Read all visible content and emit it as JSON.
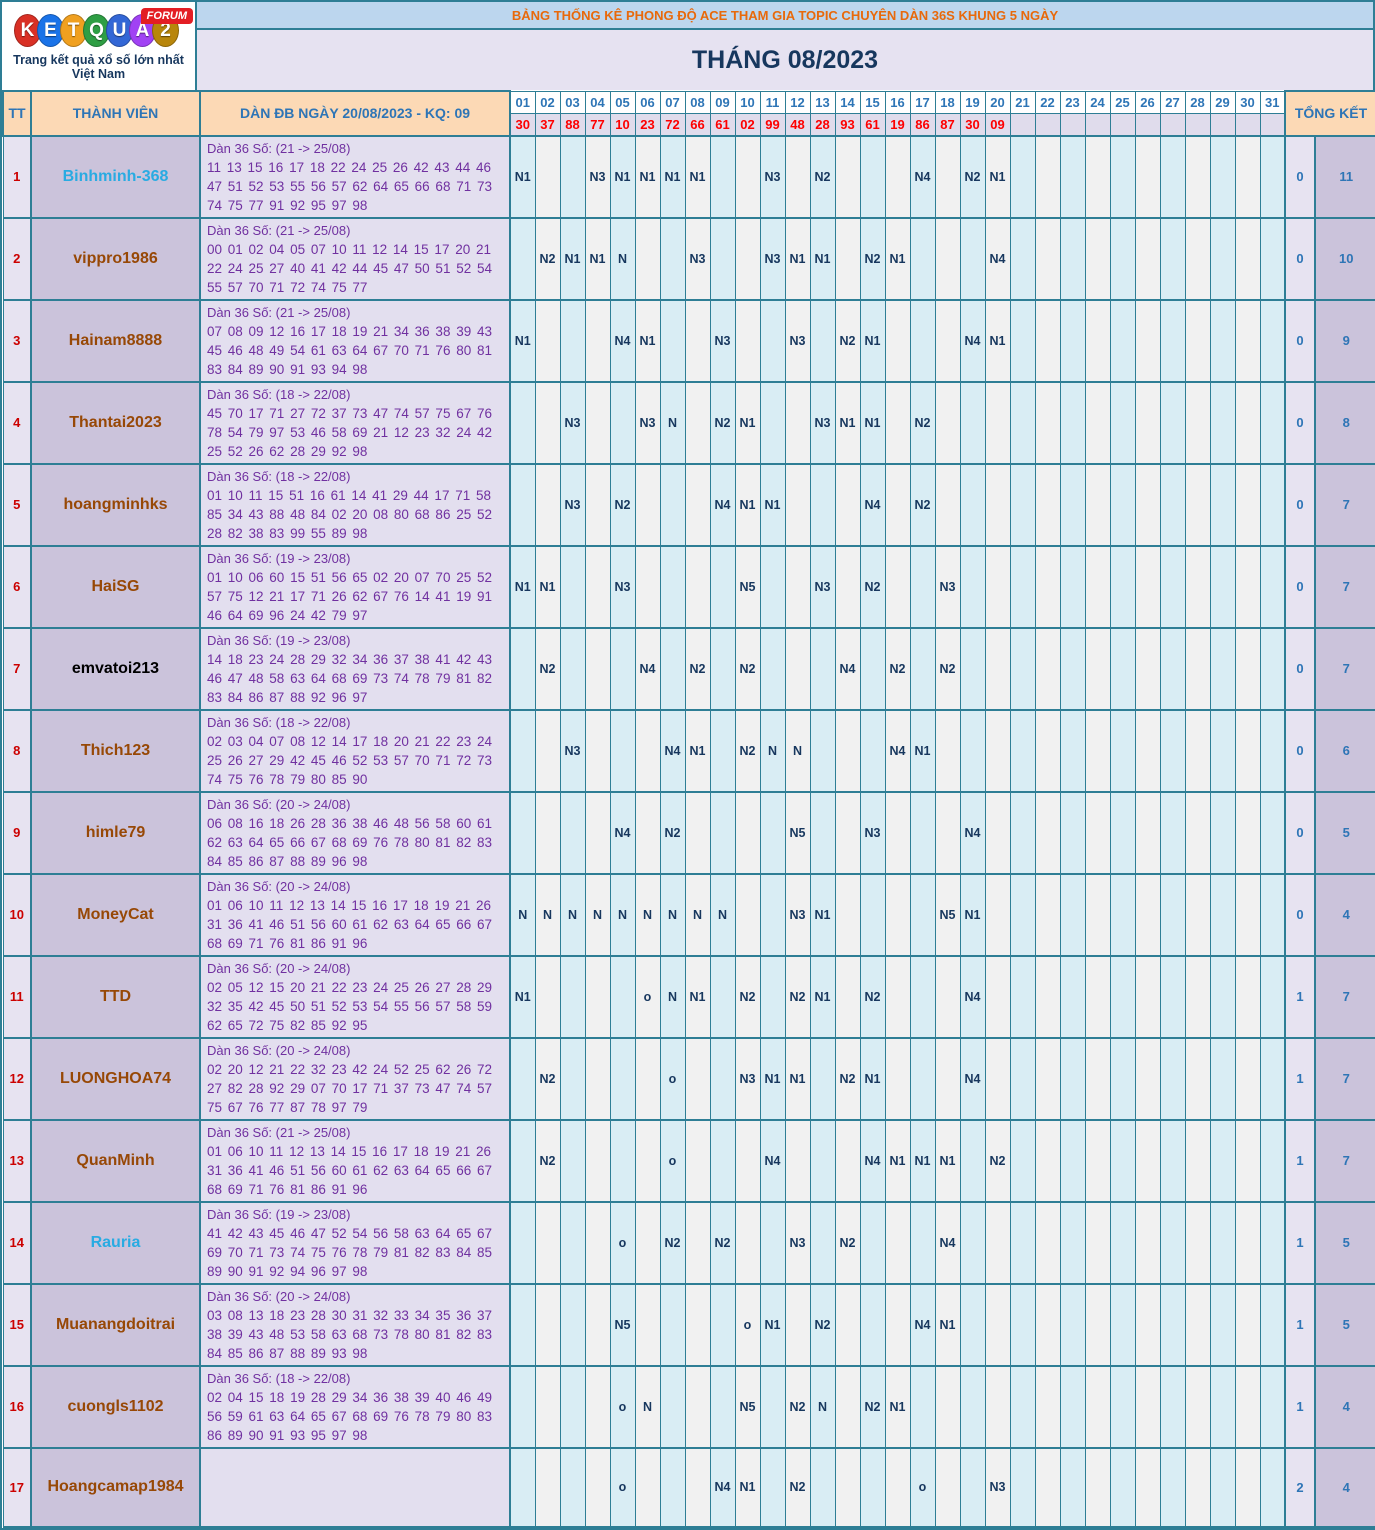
{
  "logo": {
    "brand_letters": [
      "K",
      "E",
      "T",
      "Q",
      "U",
      "A",
      "2"
    ],
    "forum_badge": "FORUM",
    "tagline": "Trang kết quả xổ số lớn nhất Việt Nam"
  },
  "header": {
    "title": "BẢNG THỐNG KÊ PHONG ĐỘ ACE THAM GIA TOPIC CHUYÊN DÀN 36S KHUNG 5 NGÀY",
    "month_title": "THÁNG 08/2023"
  },
  "colors": {
    "border_teal": "#2E7E95",
    "title_orange": "#E8690B",
    "navy": "#17375E",
    "header_peach": "#FCD9B5",
    "day_blue": "#2E75B6",
    "result_red": "#FE0000",
    "dan_purple": "#7030A0",
    "grid_blue": "#D9EDF4",
    "grid_gray": "#F1F1F1",
    "name_blue": "#29ABE2",
    "name_brown": "#974806",
    "ball_colors": [
      "#D93025",
      "#1A73E8",
      "#F0A020",
      "#2E9E44",
      "#3367D6",
      "#A142F4",
      "#B8860B"
    ]
  },
  "table": {
    "col_tt": "TT",
    "col_member": "THÀNH VIÊN",
    "col_dan": "DÀN ĐB NGÀY 20/08/2023 - KQ: 09",
    "col_total": "TỔNG KẾT",
    "days": [
      "01",
      "02",
      "03",
      "04",
      "05",
      "06",
      "07",
      "08",
      "09",
      "10",
      "11",
      "12",
      "13",
      "14",
      "15",
      "16",
      "17",
      "18",
      "19",
      "20",
      "21",
      "22",
      "23",
      "24",
      "25",
      "26",
      "27",
      "28",
      "29",
      "30",
      "31"
    ],
    "results": [
      "30",
      "37",
      "88",
      "77",
      "10",
      "23",
      "72",
      "66",
      "61",
      "02",
      "99",
      "48",
      "28",
      "93",
      "61",
      "19",
      "86",
      "87",
      "30",
      "09"
    ],
    "rows": [
      {
        "tt": "1",
        "name": "Binhminh-368",
        "name_color": "blue",
        "dan_title": "Dàn 36 Số: (21 -> 25/08)",
        "dan_numbers": "11 13 15 16 17 18 22 24 25 26 42 43 44 46 47 51 52 53 55 56 57 62 64 65 66 68 71 73 74 75 77 91 92 95 97 98",
        "marks": {
          "1": "N1",
          "4": "N3",
          "5": "N1",
          "6": "N1",
          "7": "N1",
          "8": "N1",
          "11": "N3",
          "13": "N2",
          "17": "N4",
          "19": "N2",
          "20": "N1"
        },
        "total": [
          "0",
          "11"
        ]
      },
      {
        "tt": "2",
        "name": "vippro1986",
        "name_color": "brown",
        "dan_title": "Dàn 36 Số: (21 -> 25/08)",
        "dan_numbers": "00 01 02 04 05 07 10 11 12 14 15 17 20 21 22 24 25 27 40 41 42 44 45 47 50 51 52 54 55 57 70 71 72 74 75 77",
        "marks": {
          "2": "N2",
          "3": "N1",
          "4": "N1",
          "5": "N",
          "8": "N3",
          "11": "N3",
          "12": "N1",
          "13": "N1",
          "15": "N2",
          "16": "N1",
          "20": "N4"
        },
        "total": [
          "0",
          "10"
        ]
      },
      {
        "tt": "3",
        "name": "Hainam8888",
        "name_color": "brown",
        "dan_title": "Dàn 36 Số: (21 -> 25/08)",
        "dan_numbers": "07 08 09 12 16 17 18 19 21 34 36 38 39 43 45 46 48 49 54 61 63 64 67 70 71 76 80 81 83 84 89 90 91 93 94 98",
        "marks": {
          "1": "N1",
          "5": "N4",
          "6": "N1",
          "9": "N3",
          "12": "N3",
          "14": "N2",
          "15": "N1",
          "19": "N4",
          "20": "N1"
        },
        "total": [
          "0",
          "9"
        ]
      },
      {
        "tt": "4",
        "name": "Thantai2023",
        "name_color": "brown",
        "dan_title": "Dàn 36 Số: (18 -> 22/08)",
        "dan_numbers": "45 70 17 71 27 72 37 73 47 74 57 75 67 76 78 54 79 97 53 46 58 69 21 12 23 32 24 42 25 52 26 62 28 29 92 98",
        "marks": {
          "3": "N3",
          "6": "N3",
          "7": "N",
          "9": "N2",
          "10": "N1",
          "13": "N3",
          "14": "N1",
          "15": "N1",
          "17": "N2"
        },
        "total": [
          "0",
          "8"
        ]
      },
      {
        "tt": "5",
        "name": "hoangminhks",
        "name_color": "brown",
        "dan_title": "Dàn 36 Số: (18 -> 22/08)",
        "dan_numbers": "01 10 11 15 51 16 61 14 41 29 44 17 71 58 85 34 43 88 48 84 02 20 08 80 68 86 25 52 28 82 38 83 99 55 89 98",
        "marks": {
          "3": "N3",
          "5": "N2",
          "9": "N4",
          "10": "N1",
          "11": "N1",
          "15": "N4",
          "17": "N2"
        },
        "total": [
          "0",
          "7"
        ]
      },
      {
        "tt": "6",
        "name": "HaiSG",
        "name_color": "brown",
        "dan_title": "Dàn 36 Số: (19 -> 23/08)",
        "dan_numbers": "01 10 06 60 15 51 56 65 02 20 07 70 25 52 57 75 12 21 17 71 26 62 67 76 14 41 19 91 46 64 69 96 24 42 79 97",
        "marks": {
          "1": "N1",
          "2": "N1",
          "5": "N3",
          "10": "N5",
          "13": "N3",
          "15": "N2",
          "18": "N3"
        },
        "total": [
          "0",
          "7"
        ]
      },
      {
        "tt": "7",
        "name": "emvatoi213",
        "name_color": "black",
        "dan_title": "Dàn 36 Số: (19 -> 23/08)",
        "dan_numbers": "14 18 23 24 28 29 32 34 36 37 38 41 42 43 46 47 48 58 63 64 68 69 73 74 78 79 81 82 83 84 86 87 88 92 96 97",
        "marks": {
          "2": "N2",
          "6": "N4",
          "8": "N2",
          "10": "N2",
          "14": "N4",
          "16": "N2",
          "18": "N2"
        },
        "total": [
          "0",
          "7"
        ]
      },
      {
        "tt": "8",
        "name": "Thich123",
        "name_color": "brown",
        "dan_title": "Dàn 36 Số: (18 -> 22/08)",
        "dan_numbers": "02 03 04 07 08 12 14 17 18 20 21 22 23 24 25 26 27 29 42 45 46 52 53 57 70 71 72 73 74 75 76 78 79 80 85 90",
        "marks": {
          "3": "N3",
          "7": "N4",
          "8": "N1",
          "10": "N2",
          "11": "N",
          "12": "N",
          "16": "N4",
          "17": "N1"
        },
        "total": [
          "0",
          "6"
        ]
      },
      {
        "tt": "9",
        "name": "himle79",
        "name_color": "brown",
        "dan_title": "Dàn 36 Số: (20 -> 24/08)",
        "dan_numbers": "06 08 16 18 26 28 36 38 46 48 56 58 60 61 62 63 64 65 66 67 68 69 76 78 80 81 82 83 84 85 86 87 88 89 96 98",
        "marks": {
          "5": "N4",
          "7": "N2",
          "12": "N5",
          "15": "N3",
          "19": "N4"
        },
        "total": [
          "0",
          "5"
        ]
      },
      {
        "tt": "10",
        "name": "MoneyCat",
        "name_color": "brown",
        "dan_title": "Dàn 36 Số: (20 -> 24/08)",
        "dan_numbers": "01 06 10 11 12 13 14 15 16 17 18 19 21 26 31 36 41 46 51 56 60 61 62 63 64 65 66 67 68 69 71 76 81 86 91 96",
        "marks": {
          "1": "N",
          "2": "N",
          "3": "N",
          "4": "N",
          "5": "N",
          "6": "N",
          "7": "N",
          "8": "N",
          "9": "N",
          "12": "N3",
          "13": "N1",
          "18": "N5",
          "19": "N1"
        },
        "total": [
          "0",
          "4"
        ]
      },
      {
        "tt": "11",
        "name": "TTD",
        "name_color": "brown",
        "dan_title": "Dàn 36 Số: (20 -> 24/08)",
        "dan_numbers": "02 05 12 15 20 21 22 23 24 25 26 27 28 29 32 35 42 45 50 51 52 53 54 55 56 57 58 59 62 65 72 75 82 85 92 95",
        "marks": {
          "1": "N1",
          "6": "o",
          "7": "N",
          "8": "N1",
          "10": "N2",
          "12": "N2",
          "13": "N1",
          "15": "N2",
          "19": "N4"
        },
        "total": [
          "1",
          "7"
        ]
      },
      {
        "tt": "12",
        "name": "LUONGHOA74",
        "name_color": "brown",
        "dan_title": "Dàn 36 Số: (20 -> 24/08)",
        "dan_numbers": "02 20 12 21 22 32 23 42 24 52 25 62 26 72 27 82 28 92 29 07 70 17 71 37 73 47 74 57 75 67 76 77 87 78 97 79",
        "marks": {
          "2": "N2",
          "7": "o",
          "10": "N3",
          "11": "N1",
          "12": "N1",
          "14": "N2",
          "15": "N1",
          "19": "N4"
        },
        "total": [
          "1",
          "7"
        ]
      },
      {
        "tt": "13",
        "name": "QuanMinh",
        "name_color": "brown",
        "dan_title": "Dàn 36 Số: (21 -> 25/08)",
        "dan_numbers": "01 06 10 11 12 13 14 15 16 17 18 19 21 26 31 36 41 46 51 56 60 61 62 63 64 65 66 67 68 69 71 76 81 86 91 96",
        "marks": {
          "2": "N2",
          "7": "o",
          "11": "N4",
          "15": "N4",
          "16": "N1",
          "17": "N1",
          "18": "N1",
          "20": "N2"
        },
        "total": [
          "1",
          "7"
        ]
      },
      {
        "tt": "14",
        "name": "Rauria",
        "name_color": "blue",
        "dan_title": "Dàn 36 Số: (19 -> 23/08)",
        "dan_numbers": "41 42 43 45 46 47 52 54 56 58 63 64 65 67 69 70 71 73 74 75 76 78 79 81 82 83 84 85 89 90 91 92 94 96 97 98",
        "marks": {
          "5": "o",
          "7": "N2",
          "9": "N2",
          "12": "N3",
          "14": "N2",
          "18": "N4"
        },
        "total": [
          "1",
          "5"
        ]
      },
      {
        "tt": "15",
        "name": "Muanangdoitrai",
        "name_color": "brown",
        "dan_title": "Dàn 36 Số: (20 -> 24/08)",
        "dan_numbers": "03 08 13 18 23 28 30 31 32 33 34 35 36 37 38 39 43 48 53 58 63 68 73 78 80 81 82 83 84 85 86 87 88 89 93 98",
        "marks": {
          "5": "N5",
          "10": "o",
          "11": "N1",
          "13": "N2",
          "17": "N4",
          "18": "N1"
        },
        "total": [
          "1",
          "5"
        ]
      },
      {
        "tt": "16",
        "name": "cuongls1102",
        "name_color": "brown",
        "dan_title": "Dàn 36 Số: (18 -> 22/08)",
        "dan_numbers": "02 04 15 18 19 28 29 34 36 38 39 40 46 49 56 59 61 63 64 65 67 68 69 76 78 79 80 83 86 89 90 91 93 95 97 98",
        "marks": {
          "5": "o",
          "6": "N",
          "10": "N5",
          "12": "N2",
          "13": "N",
          "15": "N2",
          "16": "N1"
        },
        "total": [
          "1",
          "4"
        ]
      },
      {
        "tt": "17",
        "name": "Hoangcamap1984",
        "name_color": "brown",
        "dan_title": "",
        "dan_numbers": "",
        "marks": {
          "5": "o",
          "9": "N4",
          "10": "N1",
          "12": "N2",
          "17": "o",
          "20": "N3"
        },
        "total": [
          "2",
          "4"
        ]
      }
    ]
  }
}
